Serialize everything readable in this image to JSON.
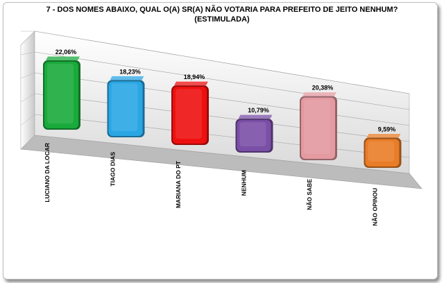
{
  "chart_data": {
    "type": "bar",
    "title_line1": "7 - DOS NOMES ABAIXO, QUAL O(A) SR(A) NÃO VOTARIA PARA PREFEITO DE JEITO NENHUM?",
    "title_line2": "(ESTIMULADA)",
    "categories": [
      "LUCIANO DA LOCAR",
      "TIAGO DIAS",
      "MARIANA DO PT",
      "NENHUM",
      "NÃO SABE",
      "NÃO OPINOU"
    ],
    "values": [
      22.06,
      18.23,
      18.94,
      10.79,
      20.38,
      9.59
    ],
    "data_labels": [
      "22,06%",
      "18,23%",
      "18,94%",
      "10,79%",
      "20,38%",
      "9,59%"
    ],
    "colors": [
      "#1aaa3c",
      "#2aa6e4",
      "#ee1010",
      "#7a4fa6",
      "#e39aa0",
      "#e87c27"
    ],
    "ylim": [
      0,
      25
    ],
    "grid": true,
    "legend": "none"
  }
}
